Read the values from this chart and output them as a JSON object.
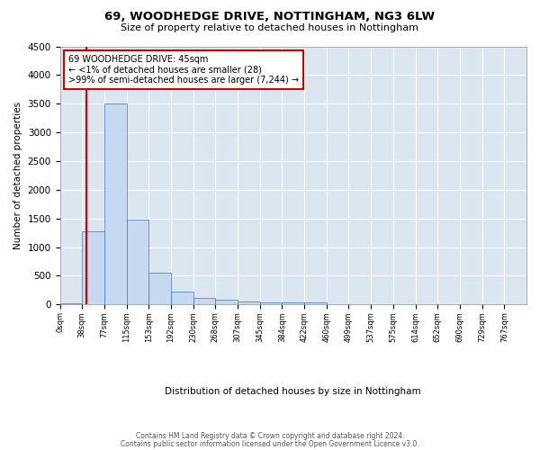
{
  "title": "69, WOODHEDGE DRIVE, NOTTINGHAM, NG3 6LW",
  "subtitle": "Size of property relative to detached houses in Nottingham",
  "xlabel": "Distribution of detached houses by size in Nottingham",
  "ylabel": "Number of detached properties",
  "bin_labels": [
    "0sqm",
    "38sqm",
    "77sqm",
    "115sqm",
    "153sqm",
    "192sqm",
    "230sqm",
    "268sqm",
    "307sqm",
    "345sqm",
    "384sqm",
    "422sqm",
    "460sqm",
    "499sqm",
    "537sqm",
    "575sqm",
    "614sqm",
    "652sqm",
    "690sqm",
    "729sqm",
    "767sqm"
  ],
  "bar_values": [
    28,
    1280,
    3500,
    1480,
    550,
    220,
    110,
    80,
    55,
    40,
    35,
    30,
    5,
    0,
    3,
    0,
    0,
    0,
    0,
    0,
    0
  ],
  "bar_color": "#c6d9f1",
  "bar_edge_color": "#4472c4",
  "ylim_max": 4500,
  "yticks": [
    0,
    500,
    1000,
    1500,
    2000,
    2500,
    3000,
    3500,
    4000,
    4500
  ],
  "property_line_color": "#cc0000",
  "annotation_line1": "69 WOODHEDGE DRIVE: 45sqm",
  "annotation_line2": "← <1% of detached houses are smaller (28)",
  "annotation_line3": ">99% of semi-detached houses are larger (7,244) →",
  "annotation_box_color": "#cc0000",
  "bg_color": "#dce6f1",
  "footer_line1": "Contains HM Land Registry data © Crown copyright and database right 2024.",
  "footer_line2": "Contains public sector information licensed under the Open Government Licence v3.0."
}
